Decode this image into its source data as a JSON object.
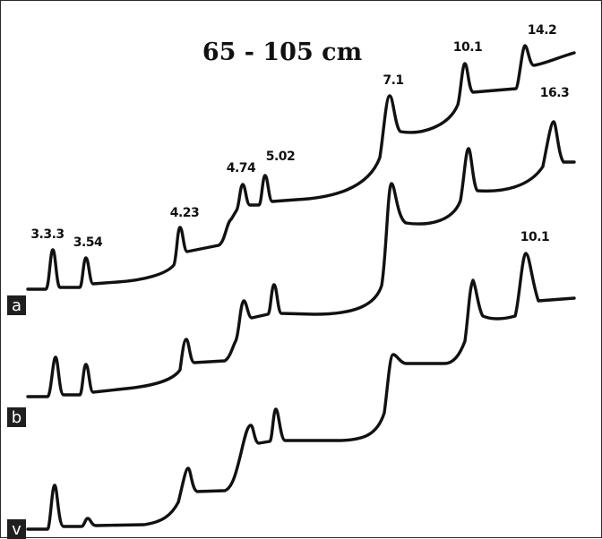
{
  "chart_data": {
    "type": "line",
    "title": "65 - 105 cm",
    "xlabel": "",
    "ylabel": "",
    "grid": false,
    "series": [
      {
        "panel": "a",
        "peaks": [
          {
            "label": "3.3.3"
          },
          {
            "label": "3.54"
          },
          {
            "label": "4.23"
          },
          {
            "label": "4.74"
          },
          {
            "label": "5.02"
          },
          {
            "label": "7.1"
          },
          {
            "label": "10.1"
          },
          {
            "label": "14.2"
          }
        ]
      },
      {
        "panel": "b",
        "peaks": [
          {
            "label": ""
          },
          {
            "label": ""
          },
          {
            "label": ""
          },
          {
            "label": ""
          },
          {
            "label": ""
          },
          {
            "label": ""
          },
          {
            "label": ""
          },
          {
            "label": "16.3"
          }
        ]
      },
      {
        "panel": "v",
        "peaks": [
          {
            "label": ""
          },
          {
            "label": ""
          },
          {
            "label": ""
          },
          {
            "label": ""
          },
          {
            "label": ""
          },
          {
            "label": ""
          },
          {
            "label": ""
          },
          {
            "label": "10.1"
          }
        ]
      }
    ]
  }
}
